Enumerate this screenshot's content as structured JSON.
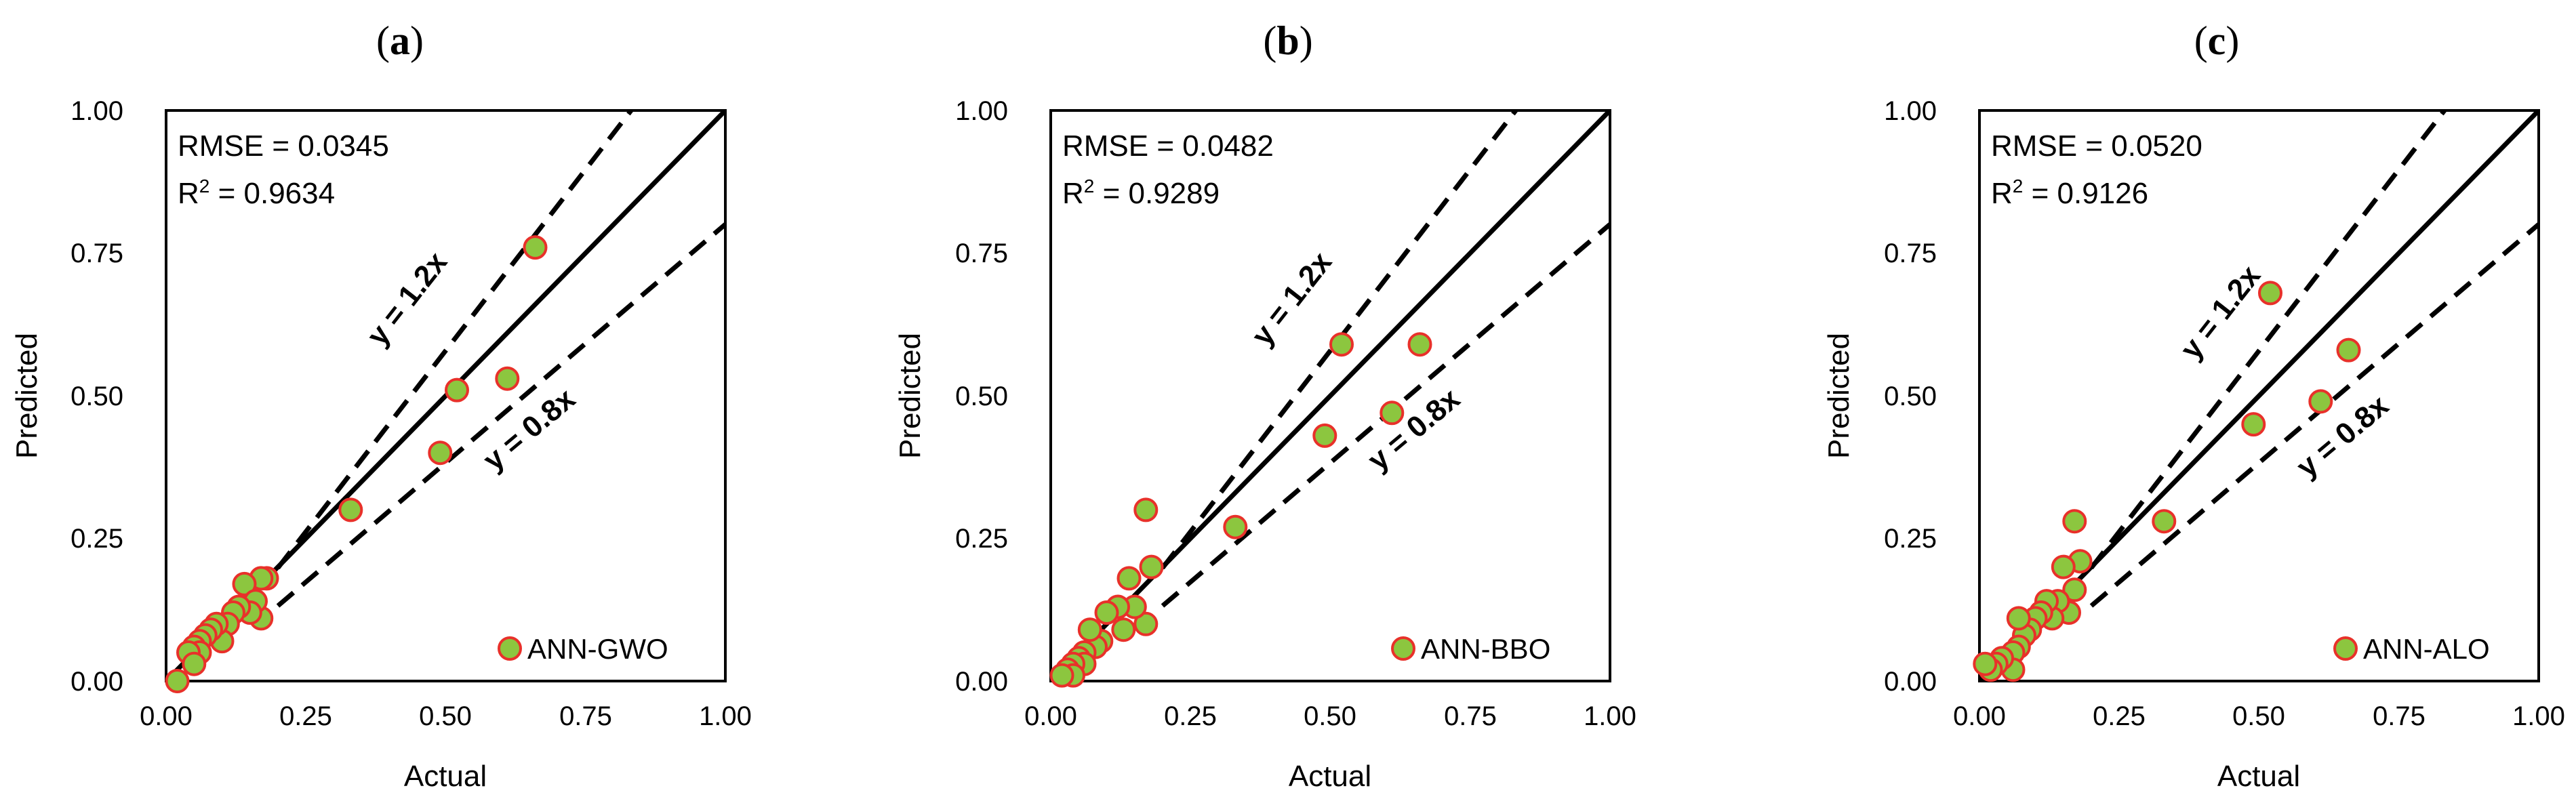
{
  "colors": {
    "marker_fill": "#8cc63f",
    "marker_edge": "#e8312a",
    "axis": "#000000"
  },
  "chart_data": [
    {
      "type": "scatter",
      "panel_label": "a",
      "xlabel": "Actual",
      "ylabel": "Predicted",
      "xlim": [
        0,
        1
      ],
      "ylim": [
        0,
        1
      ],
      "x_ticks": [
        "0.00",
        "0.25",
        "0.50",
        "0.75",
        "1.00"
      ],
      "y_ticks": [
        "0.00",
        "0.25",
        "0.50",
        "0.75",
        "1.00"
      ],
      "rmse_text": "RMSE = 0.0345",
      "r2_label": "R",
      "r2_sup": "2",
      "r2_value": " = 0.9634",
      "upper_line_label": "y = 1.2x",
      "lower_line_label": "y = 0.8x",
      "legend": "ANN-GWO",
      "legend_position": "bottom-right",
      "grid": false,
      "points": [
        [
          0.66,
          0.76
        ],
        [
          0.52,
          0.51
        ],
        [
          0.61,
          0.53
        ],
        [
          0.49,
          0.4
        ],
        [
          0.33,
          0.3
        ],
        [
          0.18,
          0.18
        ],
        [
          0.17,
          0.18
        ],
        [
          0.17,
          0.11
        ],
        [
          0.14,
          0.17
        ],
        [
          0.16,
          0.14
        ],
        [
          0.15,
          0.12
        ],
        [
          0.13,
          0.13
        ],
        [
          0.12,
          0.12
        ],
        [
          0.11,
          0.1
        ],
        [
          0.1,
          0.07
        ],
        [
          0.09,
          0.1
        ],
        [
          0.08,
          0.09
        ],
        [
          0.07,
          0.08
        ],
        [
          0.06,
          0.07
        ],
        [
          0.05,
          0.06
        ],
        [
          0.06,
          0.05
        ],
        [
          0.04,
          0.05
        ],
        [
          0.05,
          0.03
        ],
        [
          0.02,
          0.0
        ]
      ]
    },
    {
      "type": "scatter",
      "panel_label": "b",
      "xlabel": "Actual",
      "ylabel": "Predicted",
      "xlim": [
        0,
        1
      ],
      "ylim": [
        0,
        1
      ],
      "x_ticks": [
        "0.00",
        "0.25",
        "0.50",
        "0.75",
        "1.00"
      ],
      "y_ticks": [
        "0.00",
        "0.25",
        "0.50",
        "0.75",
        "1.00"
      ],
      "rmse_text": "RMSE = 0.0482",
      "r2_label": "R",
      "r2_sup": "2",
      "r2_value": " = 0.9289",
      "upper_line_label": "y = 1.2x",
      "lower_line_label": "y = 0.8x",
      "legend": "ANN-BBO",
      "legend_position": "bottom-right",
      "grid": false,
      "points": [
        [
          0.66,
          0.59
        ],
        [
          0.52,
          0.59
        ],
        [
          0.61,
          0.47
        ],
        [
          0.49,
          0.43
        ],
        [
          0.33,
          0.27
        ],
        [
          0.17,
          0.3
        ],
        [
          0.18,
          0.2
        ],
        [
          0.14,
          0.18
        ],
        [
          0.17,
          0.1
        ],
        [
          0.15,
          0.13
        ],
        [
          0.12,
          0.13
        ],
        [
          0.13,
          0.09
        ],
        [
          0.1,
          0.12
        ],
        [
          0.09,
          0.07
        ],
        [
          0.08,
          0.06
        ],
        [
          0.07,
          0.09
        ],
        [
          0.06,
          0.05
        ],
        [
          0.05,
          0.04
        ],
        [
          0.06,
          0.03
        ],
        [
          0.04,
          0.03
        ],
        [
          0.03,
          0.02
        ],
        [
          0.04,
          0.01
        ],
        [
          0.02,
          0.01
        ]
      ]
    },
    {
      "type": "scatter",
      "panel_label": "c",
      "xlabel": "Actual",
      "ylabel": "Predicted",
      "xlim": [
        0,
        1
      ],
      "ylim": [
        0,
        1
      ],
      "x_ticks": [
        "0.00",
        "0.25",
        "0.50",
        "0.75",
        "1.00"
      ],
      "y_ticks": [
        "0.00",
        "0.25",
        "0.50",
        "0.75",
        "1.00"
      ],
      "rmse_text": "RMSE = 0.0520",
      "r2_label": "R",
      "r2_sup": "2",
      "r2_value": " = 0.9126",
      "upper_line_label": "y = 1.2x",
      "lower_line_label": "y = 0.8x",
      "legend": "ANN-ALO",
      "legend_position": "bottom-right",
      "grid": false,
      "points": [
        [
          0.52,
          0.68
        ],
        [
          0.66,
          0.58
        ],
        [
          0.61,
          0.49
        ],
        [
          0.49,
          0.45
        ],
        [
          0.33,
          0.28
        ],
        [
          0.17,
          0.28
        ],
        [
          0.18,
          0.21
        ],
        [
          0.15,
          0.2
        ],
        [
          0.17,
          0.16
        ],
        [
          0.16,
          0.12
        ],
        [
          0.14,
          0.14
        ],
        [
          0.13,
          0.11
        ],
        [
          0.12,
          0.14
        ],
        [
          0.11,
          0.12
        ],
        [
          0.1,
          0.11
        ],
        [
          0.09,
          0.09
        ],
        [
          0.08,
          0.08
        ],
        [
          0.07,
          0.11
        ],
        [
          0.07,
          0.06
        ],
        [
          0.06,
          0.05
        ],
        [
          0.06,
          0.02
        ],
        [
          0.04,
          0.04
        ],
        [
          0.03,
          0.03
        ],
        [
          0.02,
          0.02
        ],
        [
          0.01,
          0.03
        ]
      ]
    }
  ]
}
